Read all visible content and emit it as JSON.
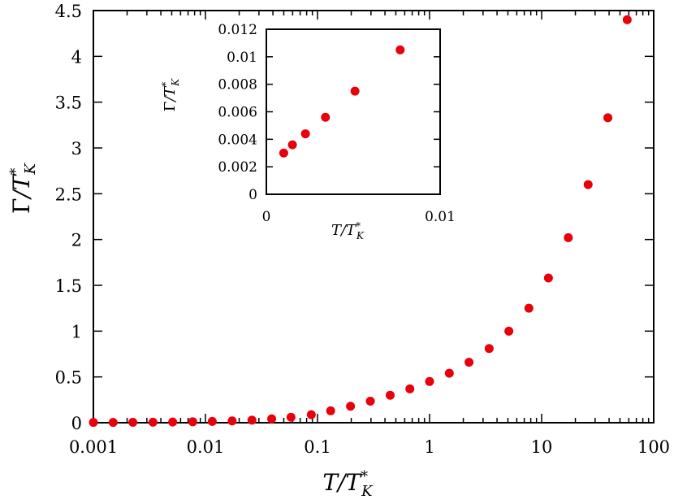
{
  "colors": {
    "marker": "#e8000b",
    "axis": "#000000",
    "background": "#ffffff"
  },
  "chart_data": [
    {
      "type": "scatter",
      "xlabel": "T/T*_K",
      "ylabel": "Γ/T*_K",
      "x_scale": "log",
      "xlim": [
        0.001,
        100
      ],
      "ylim": [
        0,
        4.5
      ],
      "x_ticks": [
        0.001,
        0.01,
        0.1,
        1,
        10,
        100
      ],
      "x_tick_labels": [
        "0.001",
        "0.01",
        "0.1",
        "1",
        "10",
        "100"
      ],
      "y_ticks": [
        0,
        0.5,
        1,
        1.5,
        2,
        2.5,
        3,
        3.5,
        4,
        4.5
      ],
      "y_tick_labels": [
        "0",
        "0.5",
        "1",
        "1.5",
        "2",
        "2.5",
        "3",
        "3.5",
        "4",
        "4.5"
      ],
      "grid": false,
      "series": [
        {
          "x": [
            0.001,
            0.0015,
            0.00225,
            0.0034,
            0.0051,
            0.0077,
            0.0115,
            0.0173,
            0.026,
            0.039,
            0.058,
            0.088,
            0.131,
            0.197,
            0.296,
            0.445,
            0.667,
            1.0,
            1.5,
            2.25,
            3.4,
            5.1,
            7.7,
            11.5,
            17.3,
            26.0,
            39.0,
            58.0
          ],
          "y": [
            0.003,
            0.0036,
            0.0044,
            0.0056,
            0.0075,
            0.0105,
            0.014,
            0.02,
            0.028,
            0.042,
            0.06,
            0.088,
            0.13,
            0.18,
            0.235,
            0.3,
            0.37,
            0.45,
            0.54,
            0.66,
            0.81,
            1.0,
            1.25,
            1.58,
            2.02,
            2.6,
            3.33,
            4.4
          ]
        }
      ]
    },
    {
      "type": "scatter",
      "xlabel": "T/T*_K",
      "ylabel": "Γ/T*_K",
      "x_scale": "linear",
      "xlim": [
        0,
        0.01
      ],
      "ylim": [
        0,
        0.012
      ],
      "x_ticks": [
        0,
        0.01
      ],
      "x_tick_labels": [
        "0",
        "0.01"
      ],
      "y_ticks": [
        0,
        0.002,
        0.004,
        0.006,
        0.008,
        0.01,
        0.012
      ],
      "y_tick_labels": [
        "0",
        "0.002",
        "0.004",
        "0.006",
        "0.008",
        "0.01",
        "0.012"
      ],
      "grid": false,
      "series": [
        {
          "x": [
            0.001,
            0.0015,
            0.00225,
            0.0034,
            0.0051,
            0.0077
          ],
          "y": [
            0.003,
            0.0036,
            0.0044,
            0.0056,
            0.0075,
            0.0105
          ]
        }
      ]
    }
  ]
}
